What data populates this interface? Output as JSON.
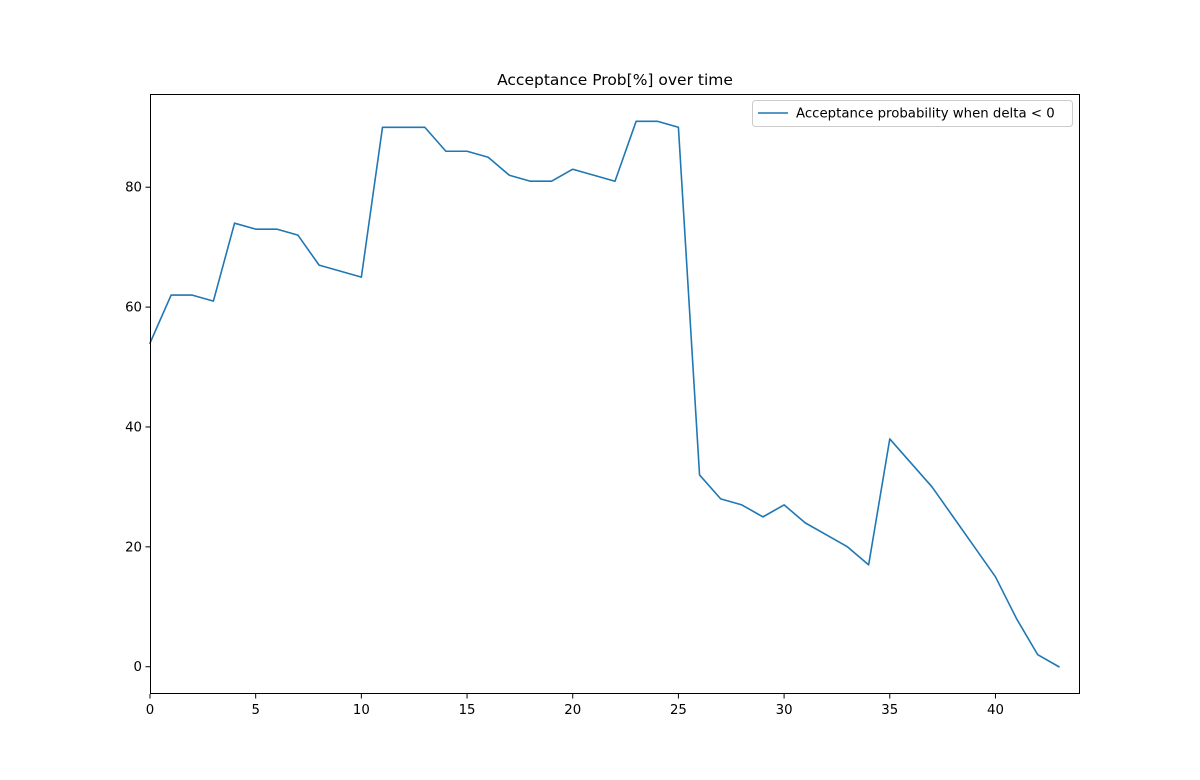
{
  "chart_data": {
    "type": "line",
    "title": "Acceptance Prob[%] over time",
    "xlabel": "",
    "ylabel": "",
    "xlim": [
      0,
      44
    ],
    "ylim": [
      -4.55,
      95.55
    ],
    "x_ticks": [
      0,
      5,
      10,
      15,
      20,
      25,
      30,
      35,
      40
    ],
    "y_ticks": [
      0,
      20,
      40,
      60,
      80
    ],
    "grid": false,
    "legend_position": "upper-right",
    "series": [
      {
        "name": "Acceptance probability when delta < 0",
        "color": "#1f77b4",
        "x": [
          0,
          1,
          2,
          3,
          4,
          5,
          6,
          7,
          8,
          9,
          10,
          11,
          12,
          13,
          14,
          15,
          16,
          17,
          18,
          19,
          20,
          21,
          22,
          23,
          24,
          25,
          26,
          27,
          28,
          29,
          30,
          31,
          32,
          33,
          34,
          35,
          36,
          37,
          38,
          39,
          40,
          41,
          42,
          43
        ],
        "y": [
          54,
          62,
          62,
          61,
          74,
          73,
          73,
          72,
          67,
          66,
          65,
          90,
          90,
          90,
          86,
          86,
          85,
          82,
          81,
          81,
          83,
          82,
          81,
          91,
          91,
          90,
          32,
          28,
          27,
          25,
          27,
          24,
          22,
          20,
          17,
          38,
          34,
          30,
          25,
          20,
          15,
          8,
          2,
          0
        ]
      }
    ]
  }
}
